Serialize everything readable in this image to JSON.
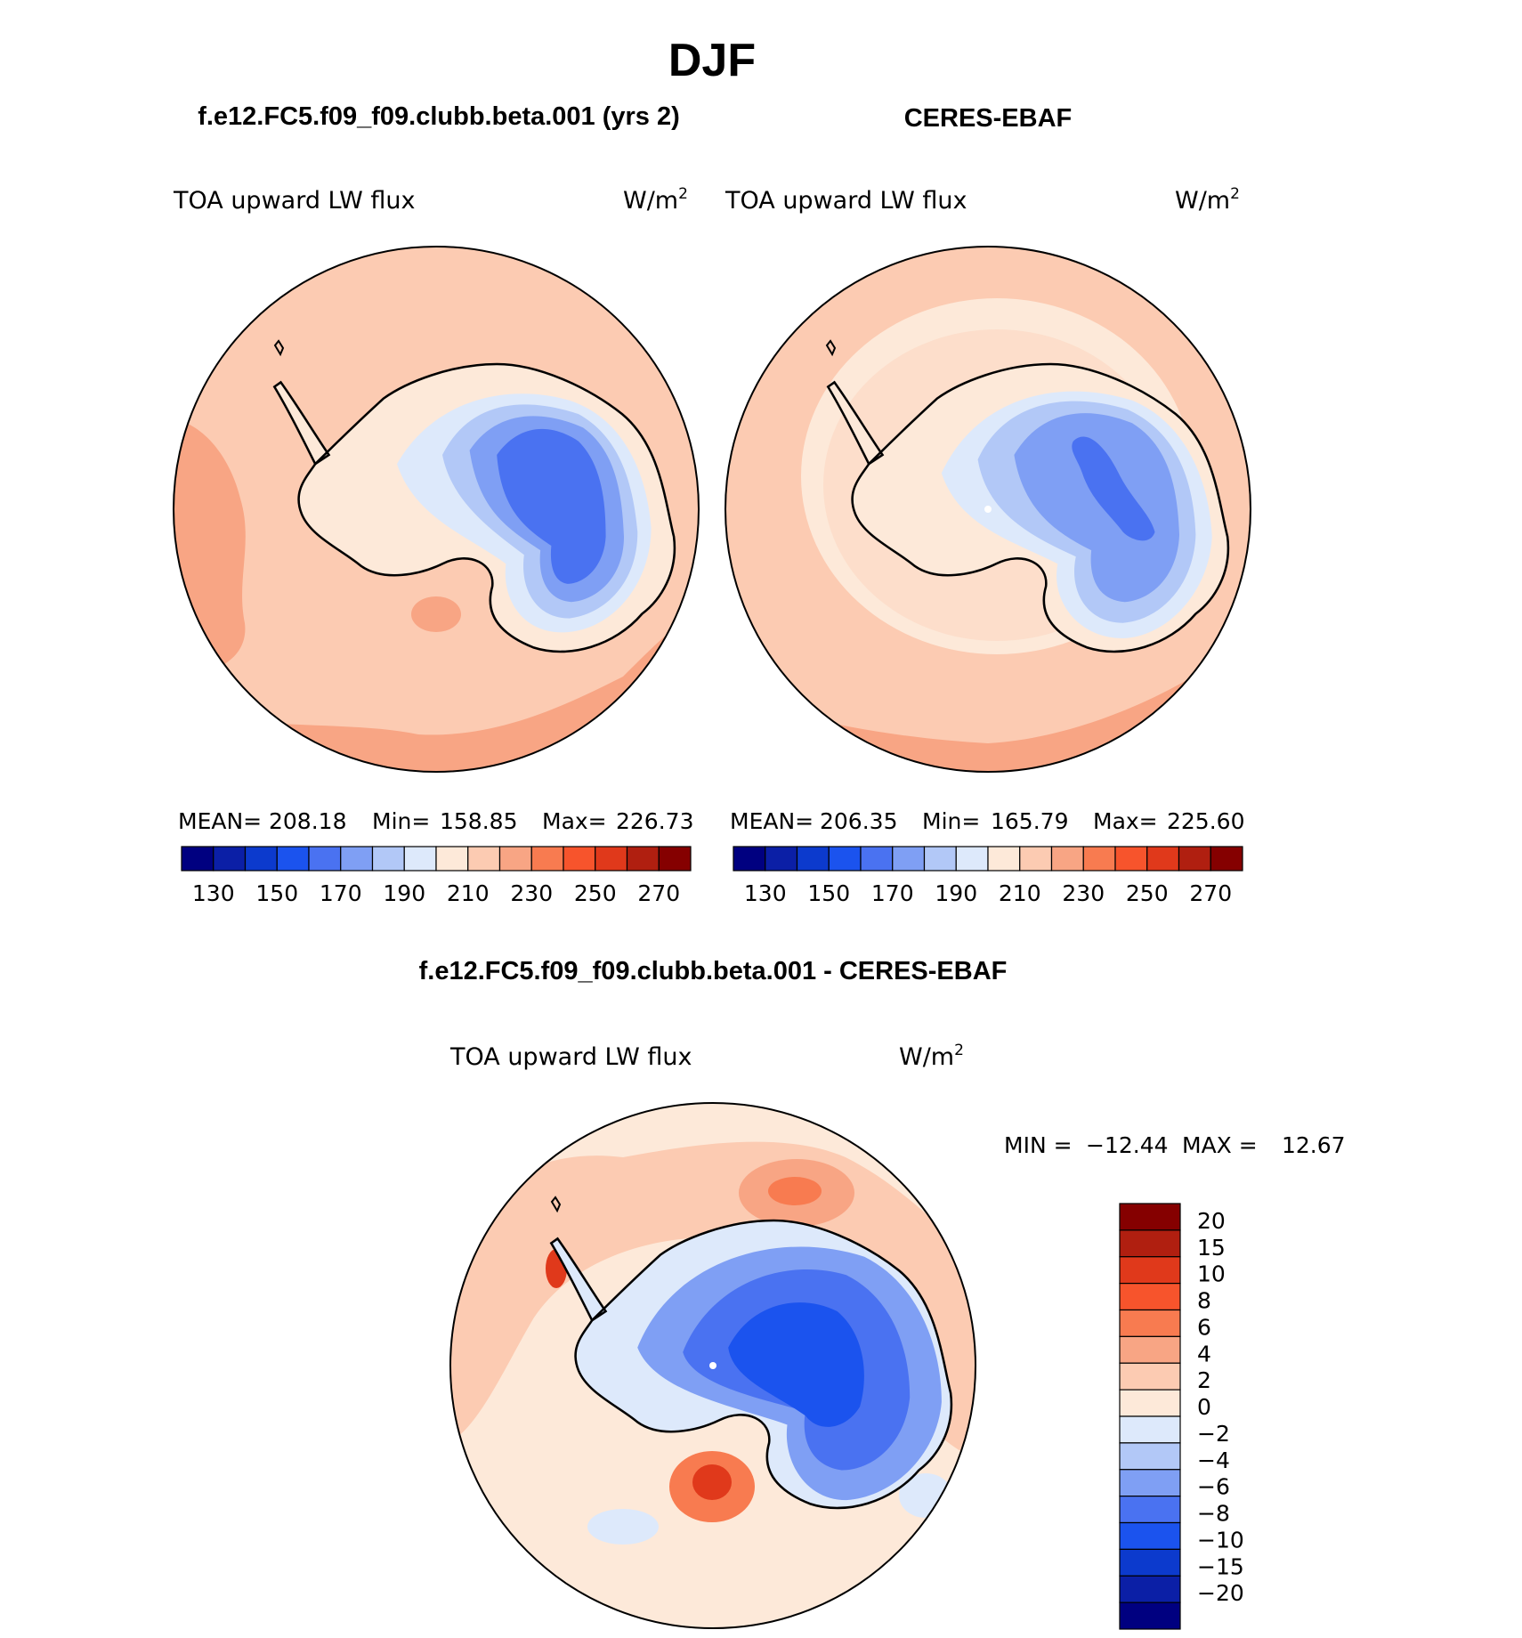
{
  "season": "DJF",
  "colors": {
    "land_outline": "#000000",
    "axis": "#000000",
    "background": "#ffffff"
  },
  "chart_data": [
    {
      "type": "heatmap",
      "projection": "south-polar-stereographic",
      "case_title": "f.e12.FC5.f09_f09.clubb.beta.001 (yrs 2)",
      "variable_label": "TOA upward LW flux",
      "units_base": "W/m",
      "units_exp": "2",
      "stats": {
        "mean_label": "MEAN=",
        "mean": "208.18",
        "min_label": "Min=",
        "min": "158.85",
        "max_label": "Max=",
        "max": "226.73"
      },
      "colorbar": {
        "orientation": "horizontal",
        "colors": [
          "#000080",
          "#0b1fa6",
          "#0c3acd",
          "#1b53ee",
          "#4a72f1",
          "#7f9ff4",
          "#b2c8f7",
          "#dde9fb",
          "#fde9d9",
          "#fccbb2",
          "#f8a584",
          "#f87b50",
          "#f7542c",
          "#e0391b",
          "#b01f10",
          "#850000"
        ],
        "tick_labels": [
          "130",
          "150",
          "170",
          "190",
          "210",
          "230",
          "250",
          "270"
        ],
        "tick_values": [
          130,
          150,
          170,
          190,
          210,
          230,
          250,
          270
        ]
      },
      "regions": {
        "ocean": 215,
        "antarctic_coast": 205,
        "plateau_outer": 180,
        "plateau_core": 165,
        "min": 158.85,
        "max": 226.73
      }
    },
    {
      "type": "heatmap",
      "projection": "south-polar-stereographic",
      "case_title": "CERES-EBAF",
      "variable_label": "TOA upward LW flux",
      "units_base": "W/m",
      "units_exp": "2",
      "stats": {
        "mean_label": "MEAN=",
        "mean": "206.35",
        "min_label": "Min=",
        "min": "165.79",
        "max_label": "Max=",
        "max": "225.60"
      },
      "colorbar": {
        "orientation": "horizontal",
        "colors": [
          "#000080",
          "#0b1fa6",
          "#0c3acd",
          "#1b53ee",
          "#4a72f1",
          "#7f9ff4",
          "#b2c8f7",
          "#dde9fb",
          "#fde9d9",
          "#fccbb2",
          "#f8a584",
          "#f87b50",
          "#f7542c",
          "#e0391b",
          "#b01f10",
          "#850000"
        ],
        "tick_labels": [
          "130",
          "150",
          "170",
          "190",
          "210",
          "230",
          "250",
          "270"
        ],
        "tick_values": [
          130,
          150,
          170,
          190,
          210,
          230,
          250,
          270
        ]
      },
      "regions": {
        "ocean": 212,
        "subpolar_band": 205,
        "antarctic_coast": 200,
        "plateau_outer": 180,
        "plateau_core": 170,
        "min": 165.79,
        "max": 225.6
      }
    },
    {
      "type": "heatmap",
      "projection": "south-polar-stereographic",
      "case_title": "f.e12.FC5.f09_f09.clubb.beta.001 - CERES-EBAF",
      "variable_label": "TOA upward LW flux",
      "units_base": "W/m",
      "units_exp": "2",
      "stats": {
        "min_label": "MIN =",
        "min": "−12.44",
        "max_label": "MAX =",
        "max": "12.67"
      },
      "colorbar": {
        "orientation": "vertical",
        "colors": [
          "#000080",
          "#0b1fa6",
          "#0c3acd",
          "#1b53ee",
          "#4a72f1",
          "#7f9ff4",
          "#b2c8f7",
          "#dde9fb",
          "#fde9d9",
          "#fccbb2",
          "#f8a584",
          "#f87b50",
          "#f7542c",
          "#e0391b",
          "#b01f10",
          "#850000"
        ],
        "tick_labels": [
          "20",
          "15",
          "10",
          "8",
          "6",
          "4",
          "2",
          "0",
          "−2",
          "−4",
          "−6",
          "−8",
          "−10",
          "−15",
          "−20"
        ],
        "tick_values": [
          20,
          15,
          10,
          8,
          6,
          4,
          2,
          0,
          -2,
          -4,
          -6,
          -8,
          -10,
          -15,
          -20
        ]
      },
      "regions": {
        "ocean": 2,
        "weddell_anomaly": 10,
        "pacific_anomaly": 8,
        "plateau": -8,
        "min": -12.44,
        "max": 12.67
      }
    }
  ]
}
